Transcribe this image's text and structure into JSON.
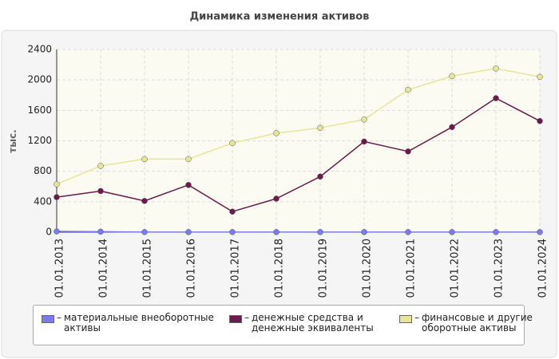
{
  "chart_data": {
    "type": "line",
    "title": "Динамика изменения активов",
    "y_label": "тыс.",
    "categories": [
      "01.01.2013",
      "01.01.2014",
      "01.01.2015",
      "01.01.2016",
      "01.01.2017",
      "01.01.2018",
      "01.01.2019",
      "01.01.2020",
      "01.01.2021",
      "01.01.2022",
      "01.01.2023",
      "01.01.2024"
    ],
    "series": [
      {
        "name": "материальные внеоборотные активы",
        "color": "#7b7bef",
        "values": [
          10,
          6,
          1,
          1,
          1,
          1,
          1,
          1,
          1,
          1,
          1,
          1
        ]
      },
      {
        "name": "денежные средства и денежные эквиваленты",
        "color": "#6b1a4b",
        "values": [
          460,
          540,
          410,
          620,
          270,
          440,
          730,
          1190,
          1060,
          1380,
          1760,
          1460
        ]
      },
      {
        "name": "финансовые и другие оборотные активы",
        "color": "#e6e69a",
        "values": [
          630,
          870,
          960,
          960,
          1170,
          1300,
          1370,
          1480,
          1870,
          2050,
          2150,
          2040
        ]
      }
    ],
    "ylim": [
      0,
      2400
    ],
    "yticks": [
      0,
      400,
      800,
      1200,
      1600,
      2000,
      2400
    ],
    "grid": true
  }
}
